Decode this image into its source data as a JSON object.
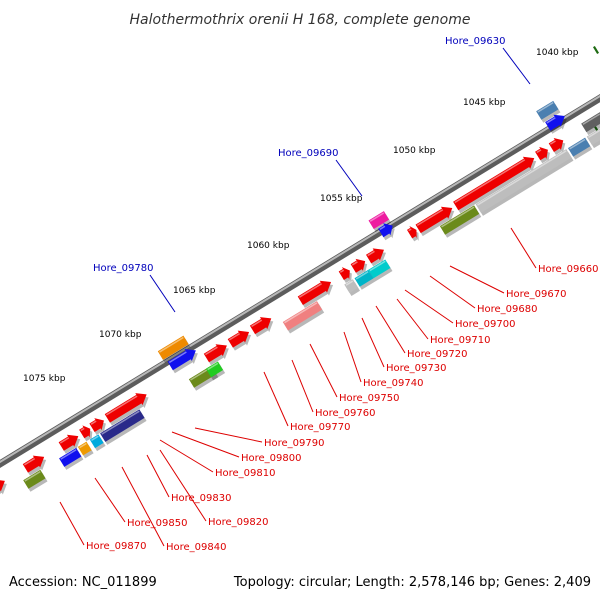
{
  "title": "Halothermothrix orenii H 168, complete genome",
  "footer": {
    "accession": "Accession: NC_011899",
    "summary": "Topology: circular; Length: 2,578,146 bp; Genes: 2,409"
  },
  "colors": {
    "backbone": "#7a7a7a",
    "tick_major": "#1e6b12",
    "tick_minor": "#2f8a22",
    "outer_label": "#0000bb",
    "inner_label": "#dd0000",
    "gene_red": "#ee0000"
  },
  "kbp_labels": [
    "1040 kbp",
    "1045 kbp",
    "1050 kbp",
    "1055 kbp",
    "1060 kbp",
    "1065 kbp",
    "1070 kbp",
    "1075 kbp"
  ],
  "outer_labels": [
    "Hore_09630",
    "Hore_09690",
    "Hore_09780"
  ],
  "inner_labels": [
    "Hore_09660",
    "Hore_09670",
    "Hore_09680",
    "Hore_09700",
    "Hore_09710",
    "Hore_09720",
    "Hore_09730",
    "Hore_09740",
    "Hore_09750",
    "Hore_09760",
    "Hore_09770",
    "Hore_09790",
    "Hore_09800",
    "Hore_09810",
    "Hore_09830",
    "Hore_09820",
    "Hore_09850",
    "Hore_09840",
    "Hore_09870"
  ]
}
